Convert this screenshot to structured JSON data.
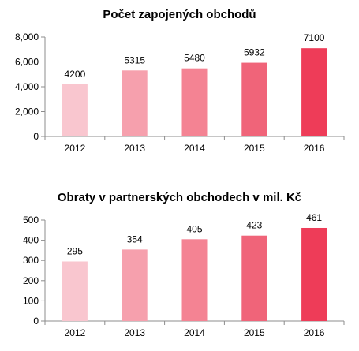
{
  "chart_data": [
    {
      "type": "bar",
      "title": "Počet zapojených obchodů",
      "categories": [
        "2012",
        "2013",
        "2014",
        "2015",
        "2016"
      ],
      "values": [
        4200,
        5315,
        5480,
        5932,
        7100
      ],
      "yticks": [
        "0",
        "2,000",
        "4,000",
        "6,000",
        "8,000"
      ],
      "ylim": [
        0,
        8000
      ],
      "colors": [
        "#f9c6cf",
        "#f6a0ad",
        "#f48393",
        "#f06479",
        "#ee3c58"
      ],
      "grid": false,
      "legend": "none"
    },
    {
      "type": "bar",
      "title": "Obraty v partnerských obchodech v mil. Kč",
      "categories": [
        "2012",
        "2013",
        "2014",
        "2015",
        "2016"
      ],
      "values": [
        295,
        354,
        405,
        423,
        461
      ],
      "yticks": [
        "0",
        "100",
        "200",
        "300",
        "400",
        "500"
      ],
      "ylim": [
        0,
        500
      ],
      "colors": [
        "#f9c6cf",
        "#f6a0ad",
        "#f48393",
        "#f06479",
        "#ee3c58"
      ],
      "grid": false,
      "legend": "none"
    }
  ]
}
